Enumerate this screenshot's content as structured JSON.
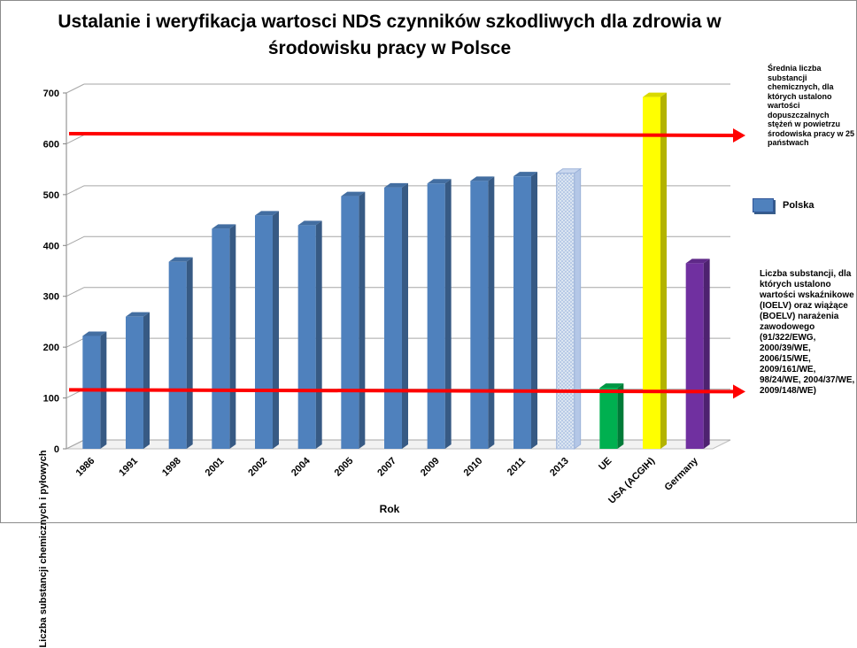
{
  "chart_data": {
    "type": "bar",
    "title": "Ustalanie i weryfikacja wartosci NDS czynników szkodliwych dla zdrowia w środowisku pracy w Polsce",
    "xlabel": "Rok",
    "ylabel": "Liczba  substancji chemicznych  i pyłowych",
    "ylim": [
      0,
      700
    ],
    "yticks": [
      0,
      100,
      200,
      300,
      400,
      500,
      600,
      700
    ],
    "categories": [
      "1986",
      "1991",
      "1998",
      "2001",
      "2002",
      "2004",
      "2005",
      "2007",
      "2009",
      "2010",
      "2011",
      "2013",
      "UE",
      "USA (ACGIH)",
      "Germany"
    ],
    "values": [
      222,
      260,
      368,
      433,
      459,
      440,
      497,
      514,
      522,
      527,
      536,
      542,
      120,
      692,
      365
    ],
    "bar_colors": [
      "#4f81bd",
      "#4f81bd",
      "#4f81bd",
      "#4f81bd",
      "#4f81bd",
      "#4f81bd",
      "#4f81bd",
      "#4f81bd",
      "#4f81bd",
      "#4f81bd",
      "#4f81bd",
      "pattern",
      "#00b050",
      "#ffff00",
      "#7030a0"
    ],
    "series": [
      {
        "name": "Polska"
      }
    ],
    "grid": true,
    "reference_lines": [
      {
        "value": 620,
        "color": "#ff0000",
        "label": "Średnia liczba substancji chemicznych, dla których ustalono wartości dopuszczalnych stężeń w powietrzu środowiska pracy w 25 państwach"
      },
      {
        "value": 116,
        "color": "#ff0000",
        "label": "Liczba substancji, dla których ustalono wartości wskaźnikowe (IOELV) oraz wiążące (BOELV) narażenia zawodowego (91/322/EWG, 2000/39/WE, 2006/15/WE, 2009/161/WE, 98/24/WE, 2004/37/WE, 2009/148/WE)"
      }
    ]
  }
}
